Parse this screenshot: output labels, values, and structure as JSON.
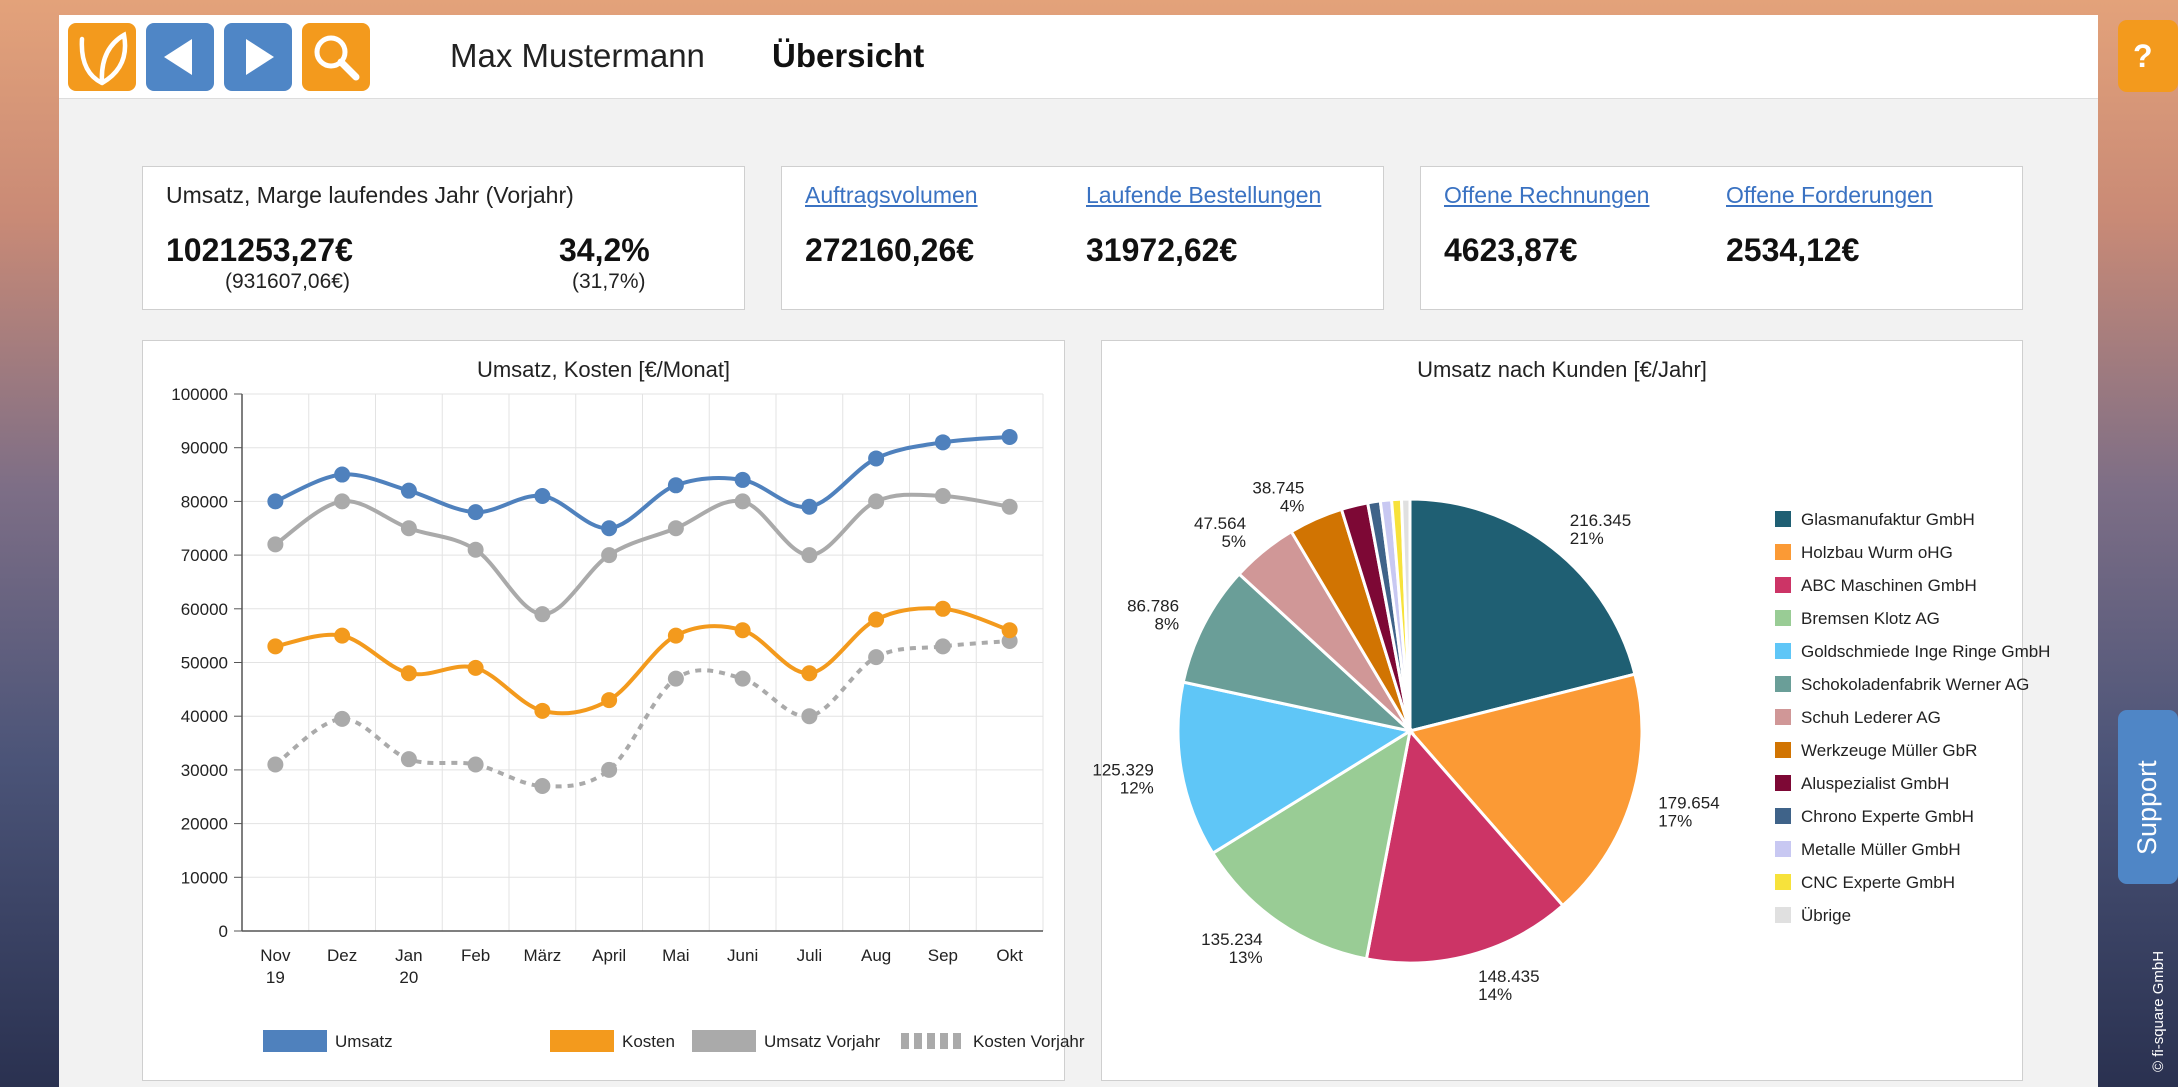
{
  "header": {
    "user_name": "Max Mustermann",
    "page_title": "Übersicht",
    "buttons": [
      {
        "icon": "logo-leaf-icon"
      },
      {
        "icon": "arrow-left-icon"
      },
      {
        "icon": "arrow-right-icon"
      },
      {
        "icon": "search-icon"
      }
    ]
  },
  "help_label": "?",
  "support_label": "Support",
  "copyright": "© fi-square GmbH",
  "kpi": {
    "umsatz": {
      "caption": "Umsatz, Marge laufendes Jahr (Vorjahr)",
      "value": "1021253,27€",
      "prev": "(931607,06€)",
      "margin": "34,2%",
      "margin_prev": "(31,7%)"
    },
    "auftrag": {
      "label1": "Auftragsvolumen",
      "value1": "272160,26€",
      "label2": "Laufende Bestellungen",
      "value2": "31972,62€"
    },
    "rechnungen": {
      "label1": "Offene Rechnungen",
      "value1": "4623,87€",
      "label2": "Offene Forderungen",
      "value2": "2534,12€"
    }
  },
  "colors": {
    "umsatz": "#4f81bd",
    "kosten": "#f39a1d",
    "umsatz_vorjahr": "#aaaaaa",
    "kosten_vorjahr": "#aaaaaa",
    "brand_orange": "#f39a1d",
    "brand_blue": "#4f86c6"
  },
  "chart_data": [
    {
      "type": "line",
      "title": "Umsatz, Kosten [€/Monat]",
      "x": [
        "Nov 19",
        "Dez",
        "Jan 20",
        "Feb",
        "März",
        "April",
        "Mai",
        "Juni",
        "Juli",
        "Aug",
        "Sep",
        "Okt"
      ],
      "ylim": [
        0,
        100000
      ],
      "yticks": [
        0,
        10000,
        20000,
        30000,
        40000,
        50000,
        60000,
        70000,
        80000,
        90000,
        100000
      ],
      "grid": true,
      "legend": "bottom",
      "series": [
        {
          "name": "Umsatz",
          "values": [
            80000,
            85000,
            82000,
            78000,
            81000,
            75000,
            83000,
            84000,
            79000,
            88000,
            91000,
            92000
          ]
        },
        {
          "name": "Kosten",
          "values": [
            53000,
            55000,
            48000,
            49000,
            41000,
            43000,
            55000,
            56000,
            48000,
            58000,
            60000,
            56000
          ]
        },
        {
          "name": "Umsatz Vorjahr",
          "values": [
            72000,
            80000,
            75000,
            71000,
            59000,
            70000,
            75000,
            80000,
            70000,
            80000,
            81000,
            79000
          ]
        },
        {
          "name": "Kosten Vorjahr",
          "values": [
            31000,
            39500,
            32000,
            31000,
            27000,
            30000,
            47000,
            47000,
            40000,
            51000,
            53000,
            54000
          ]
        }
      ]
    },
    {
      "type": "pie",
      "title": "Umsatz nach Kunden [€/Jahr]",
      "legend": "right",
      "slices": [
        {
          "name": "Glasmanufaktur GmbH",
          "value": 216345,
          "label": "216.345",
          "pct": "21%",
          "color": "#1f5f73"
        },
        {
          "name": "Holzbau Wurm oHG",
          "value": 179654,
          "label": "179.654",
          "pct": "17%",
          "color": "#fb9a35"
        },
        {
          "name": "ABC Maschinen GmbH",
          "value": 148435,
          "label": "148.435",
          "pct": "14%",
          "color": "#cc3466"
        },
        {
          "name": "Bremsen Klotz AG",
          "value": 135234,
          "label": "135.234",
          "pct": "13%",
          "color": "#99cc95"
        },
        {
          "name": "Goldschmiede Inge Ringe GmbH",
          "value": 125329,
          "label": "125.329",
          "pct": "12%",
          "color": "#5fc6f7"
        },
        {
          "name": "Schokoladenfabrik Werner AG",
          "value": 86786,
          "label": "86.786",
          "pct": "8%",
          "color": "#6a9e98"
        },
        {
          "name": "Schuh Lederer AG",
          "value": 47564,
          "label": "47.564",
          "pct": "5%",
          "color": "#d09797"
        },
        {
          "name": "Werkzeuge Müller GbR",
          "value": 38745,
          "label": "38.745",
          "pct": "4%",
          "color": "#d17402"
        },
        {
          "name": "Aluspezialist GmbH",
          "value": 19000,
          "label": "",
          "pct": "",
          "color": "#7d0835"
        },
        {
          "name": "Chrono Experte GmbH",
          "value": 9000,
          "label": "",
          "pct": "",
          "color": "#3f6389"
        },
        {
          "name": "Metalle Müller GmbH",
          "value": 8000,
          "label": "",
          "pct": "",
          "color": "#c8c8f2"
        },
        {
          "name": "CNC Experte GmbH",
          "value": 7000,
          "label": "",
          "pct": "",
          "color": "#f7e23b"
        },
        {
          "name": "Übrige",
          "value": 6000,
          "label": "",
          "pct": "",
          "color": "#e0e0e0"
        }
      ]
    }
  ]
}
